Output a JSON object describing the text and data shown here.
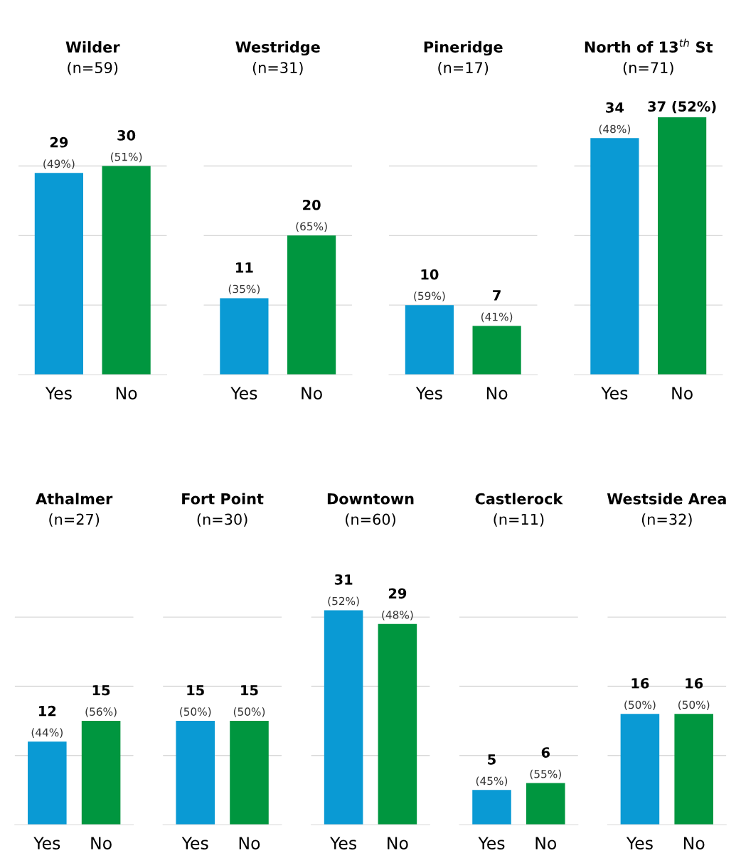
{
  "chart_data": [
    {
      "type": "bar",
      "title": "Wilder",
      "subtitle": "(n=59)",
      "categories": [
        "Yes",
        "No"
      ],
      "values": [
        29,
        30
      ],
      "colors": [
        "#0a9ad4",
        "#00963f"
      ],
      "value_labels": [
        "29\n(49%)",
        "30\n(51%)"
      ],
      "ref_lines": [
        {
          "axis": "y",
          "value": 10,
          "color": "#d9d9d9"
        },
        {
          "axis": "y",
          "value": 20,
          "color": "#d9d9d9"
        },
        {
          "axis": "y",
          "value": 30,
          "color": "#d9d9d9"
        }
      ],
      "tick_labels": "x"
    },
    {
      "type": "bar",
      "title": "Westridge",
      "subtitle": "(n=31)",
      "categories": [
        "Yes",
        "No"
      ],
      "values": [
        11,
        20
      ],
      "colors": [
        "#0a9ad4",
        "#00963f"
      ],
      "value_labels": [
        "11\n(35%)",
        "20\n(65%)"
      ],
      "ref_lines": [
        {
          "axis": "y",
          "value": 10,
          "color": "#d9d9d9"
        },
        {
          "axis": "y",
          "value": 20,
          "color": "#d9d9d9"
        },
        {
          "axis": "y",
          "value": 30,
          "color": "#d9d9d9"
        }
      ],
      "tick_labels": "x"
    },
    {
      "type": "bar",
      "title": "Pineridge",
      "subtitle": "(n=17)",
      "categories": [
        "Yes",
        "No"
      ],
      "values": [
        10,
        7
      ],
      "colors": [
        "#0a9ad4",
        "#00963f"
      ],
      "value_labels": [
        "10\n(59%)",
        "7\n(41%)"
      ],
      "ref_lines": [
        {
          "axis": "y",
          "value": 10,
          "color": "#d9d9d9"
        },
        {
          "axis": "y",
          "value": 20,
          "color": "#d9d9d9"
        },
        {
          "axis": "y",
          "value": 30,
          "color": "#d9d9d9"
        }
      ],
      "tick_labels": "x"
    },
    {
      "type": "bar",
      "title": "North of 13$^{th}$ St",
      "subtitle": "(n=71)",
      "categories": [
        "Yes",
        "No"
      ],
      "values": [
        34,
        37
      ],
      "colors": [
        "#0a9ad4",
        "#00963f"
      ],
      "value_labels": [
        "34\n(48%)",
        "37 (52%)"
      ],
      "ref_lines": [
        {
          "axis": "y",
          "value": 10,
          "color": "#d9d9d9"
        },
        {
          "axis": "y",
          "value": 20,
          "color": "#d9d9d9"
        },
        {
          "axis": "y",
          "value": 30,
          "color": "#d9d9d9"
        }
      ],
      "tick_labels": "x"
    },
    {
      "type": "bar",
      "title": "Athalmer",
      "subtitle": "(n=27)",
      "categories": [
        "Yes",
        "No"
      ],
      "values": [
        12,
        15
      ],
      "colors": [
        "#0a9ad4",
        "#00963f"
      ],
      "value_labels": [
        "12\n(44%)",
        "15\n(56%)"
      ],
      "ref_lines": [
        {
          "axis": "y",
          "value": 10,
          "color": "#d9d9d9"
        },
        {
          "axis": "y",
          "value": 20,
          "color": "#d9d9d9"
        },
        {
          "axis": "y",
          "value": 30,
          "color": "#d9d9d9"
        }
      ],
      "tick_labels": "x"
    },
    {
      "type": "bar",
      "title": "Fort Point",
      "subtitle": "(n=30)",
      "categories": [
        "Yes",
        "No"
      ],
      "values": [
        15,
        15
      ],
      "colors": [
        "#0a9ad4",
        "#00963f"
      ],
      "value_labels": [
        "15\n(50%)",
        "15\n(50%)"
      ],
      "ref_lines": [
        {
          "axis": "y",
          "value": 10,
          "color": "#d9d9d9"
        },
        {
          "axis": "y",
          "value": 20,
          "color": "#d9d9d9"
        },
        {
          "axis": "y",
          "value": 30,
          "color": "#d9d9d9"
        }
      ],
      "tick_labels": "x"
    },
    {
      "type": "bar",
      "title": "Downtown",
      "subtitle": "(n=60)",
      "categories": [
        "Yes",
        "No"
      ],
      "values": [
        31,
        29
      ],
      "colors": [
        "#0a9ad4",
        "#00963f"
      ],
      "value_labels": [
        "31\n(52%)",
        "29\n(48%)"
      ],
      "ref_lines": [
        {
          "axis": "y",
          "value": 10,
          "color": "#d9d9d9"
        },
        {
          "axis": "y",
          "value": 20,
          "color": "#d9d9d9"
        },
        {
          "axis": "y",
          "value": 30,
          "color": "#d9d9d9"
        }
      ],
      "tick_labels": "x"
    },
    {
      "type": "bar",
      "title": "Castlerock",
      "subtitle": "(n=11)",
      "categories": [
        "Yes",
        "No"
      ],
      "values": [
        5,
        6
      ],
      "colors": [
        "#0a9ad4",
        "#00963f"
      ],
      "value_labels": [
        "5\n(45%)",
        "6\n(55%)"
      ],
      "ref_lines": [
        {
          "axis": "y",
          "value": 10,
          "color": "#d9d9d9"
        },
        {
          "axis": "y",
          "value": 20,
          "color": "#d9d9d9"
        },
        {
          "axis": "y",
          "value": 30,
          "color": "#d9d9d9"
        }
      ],
      "tick_labels": "x"
    },
    {
      "type": "bar",
      "title": "Westside Area",
      "subtitle": "(n=32)",
      "categories": [
        "Yes",
        "No"
      ],
      "values": [
        16,
        16
      ],
      "colors": [
        "#0a9ad4",
        "#00963f"
      ],
      "value_labels": [
        "16\n(50%)",
        "16\n(50%)"
      ],
      "ref_lines": [
        {
          "axis": "y",
          "value": 10,
          "color": "#d9d9d9"
        },
        {
          "axis": "y",
          "value": 20,
          "color": "#d9d9d9"
        },
        {
          "axis": "y",
          "value": 30,
          "color": "#d9d9d9"
        }
      ],
      "tick_labels": "x"
    }
  ]
}
